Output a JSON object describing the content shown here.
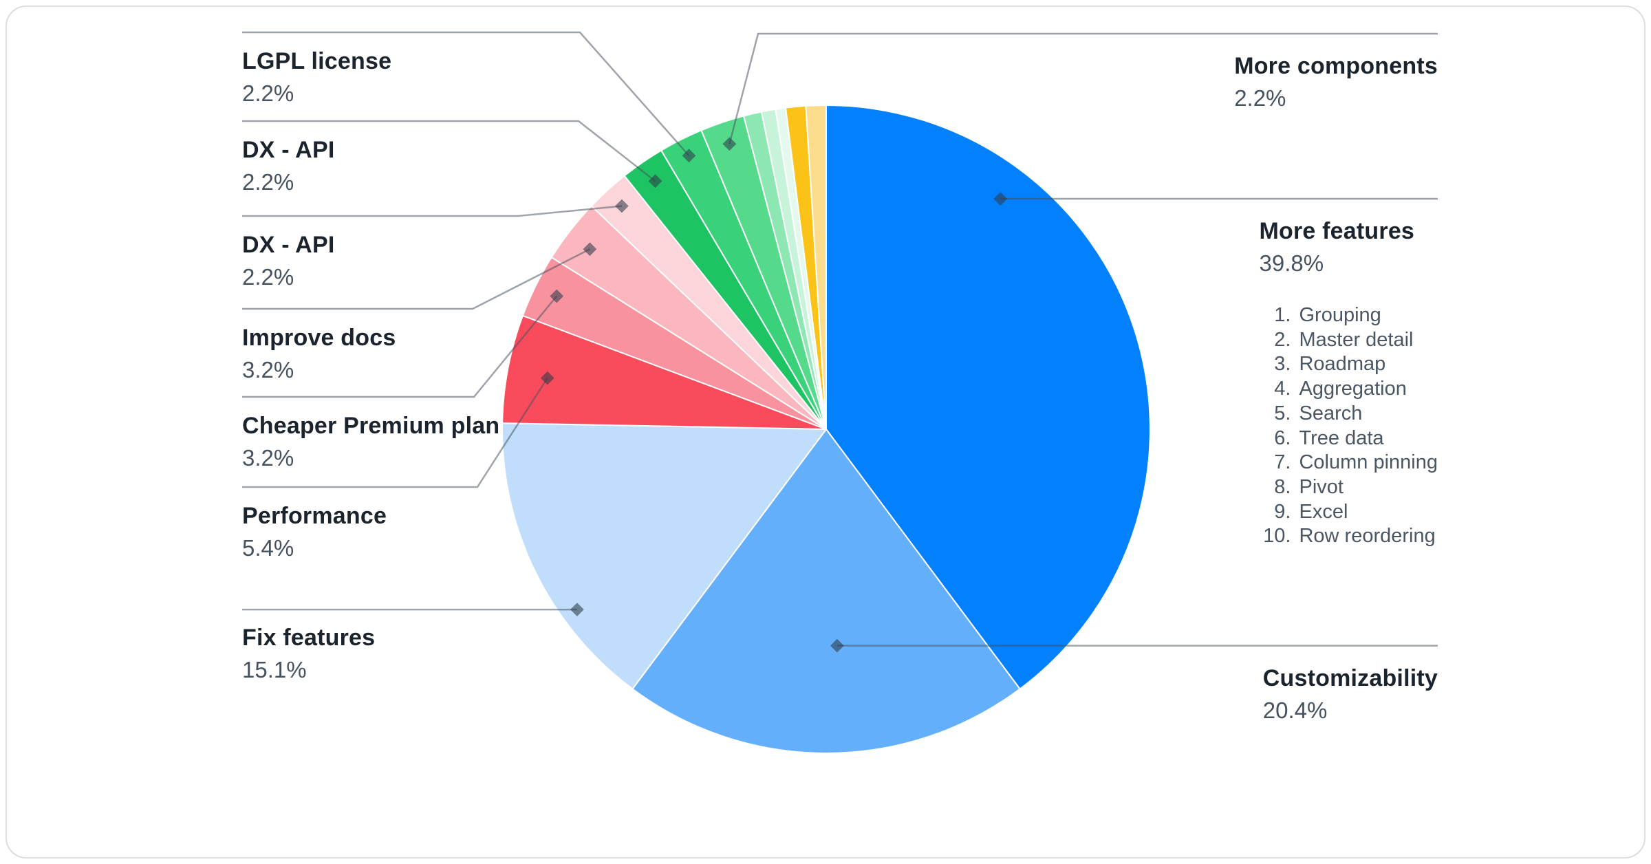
{
  "chart_data": {
    "type": "pie",
    "unit": "%",
    "start_angle_deg": 0,
    "direction": "clockwise",
    "slices": [
      {
        "label": "More features",
        "value": 39.8,
        "color": "#0380FD",
        "note_items": [
          "Grouping",
          "Master detail",
          "Roadmap",
          "Aggregation",
          "Search",
          "Tree data",
          "Column pinning",
          "Pivot",
          "Excel",
          "Row reordering"
        ]
      },
      {
        "label": "Customizability",
        "value": 20.4,
        "color": "#64AFFC"
      },
      {
        "label": "Fix features",
        "value": 15.1,
        "color": "#C0DEFB"
      },
      {
        "label": "Performance",
        "value": 5.4,
        "color": "#F94B5C"
      },
      {
        "label": "Cheaper Premium plan",
        "value": 3.2,
        "color": "#F8929F"
      },
      {
        "label": "Improve docs",
        "value": 3.2,
        "color": "#FBB6BF"
      },
      {
        "label": "DX - API",
        "value": 2.2,
        "color": "#FCD5DB"
      },
      {
        "label": "DX - API",
        "value": 2.2,
        "color": "#1EC464"
      },
      {
        "label": "LGPL license",
        "value": 2.2,
        "color": "#39D27A"
      },
      {
        "label": "More components",
        "value": 2.2,
        "color": "#55DA8C"
      },
      {
        "label": "",
        "value": 0.9,
        "color": "#8CE7B2"
      },
      {
        "label": "",
        "value": 0.7,
        "color": "#C7F3DA"
      },
      {
        "label": "",
        "value": 0.5,
        "color": "#E4F9EE"
      },
      {
        "label": "",
        "value": 1.0,
        "color": "#FBC217"
      },
      {
        "label": "",
        "value": 1.0,
        "color": "#FBDC8A"
      }
    ]
  },
  "callouts": {
    "lgpl": {
      "name": "LGPL license",
      "pct": "2.2%"
    },
    "dx_api_1": {
      "name": "DX - API",
      "pct": "2.2%"
    },
    "dx_api_2": {
      "name": "DX - API",
      "pct": "2.2%"
    },
    "improve_docs": {
      "name": "Improve docs",
      "pct": "3.2%"
    },
    "cheaper_premium": {
      "name": "Cheaper Premium plan",
      "pct": "3.2%"
    },
    "performance": {
      "name": "Performance",
      "pct": "5.4%"
    },
    "fix_features": {
      "name": "Fix features",
      "pct": "15.1%"
    },
    "more_components": {
      "name": "More components",
      "pct": "2.2%"
    },
    "more_features": {
      "name": "More features",
      "pct": "39.8%"
    },
    "customizability": {
      "name": "Customizability",
      "pct": "20.4%"
    }
  },
  "more_features_list": [
    "Grouping",
    "Master detail",
    "Roadmap",
    "Aggregation",
    "Search",
    "Tree data",
    "Column pinning",
    "Pivot",
    "Excel",
    "Row reordering"
  ],
  "colors": {
    "leader_line": "rgba(70,80,92,0.52)",
    "dot": "rgba(45,58,72,0.58)",
    "card_border": "#dbdee1",
    "name_text": "#1b232c",
    "pct_text": "#46535f"
  }
}
